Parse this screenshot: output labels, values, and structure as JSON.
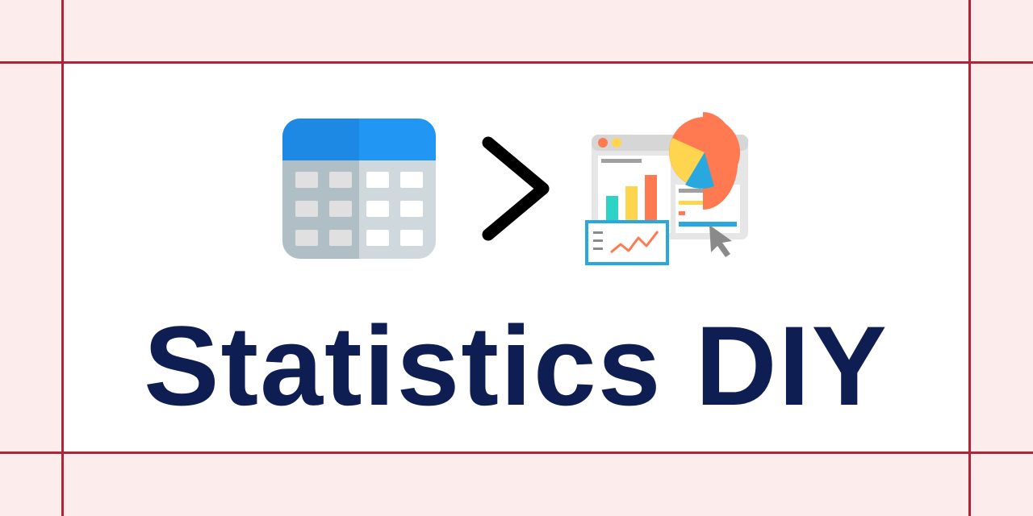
{
  "title": "Statistics DIY",
  "icons": {
    "table": "spreadsheet-table-icon",
    "separator": "greater-than-chevron-icon",
    "dashboard": "analytics-dashboard-icon"
  },
  "colors": {
    "background": "#fdecec",
    "frame_lines": "#a8283a",
    "card": "#ffffff",
    "title_text": "#0e1e52",
    "table_header": "#2196f3",
    "table_body": "#cfd8dc",
    "pie_orange": "#ff7a50",
    "pie_yellow": "#ffd54f",
    "pie_blue": "#29a8e0",
    "bar_teal": "#2ed3c6"
  }
}
